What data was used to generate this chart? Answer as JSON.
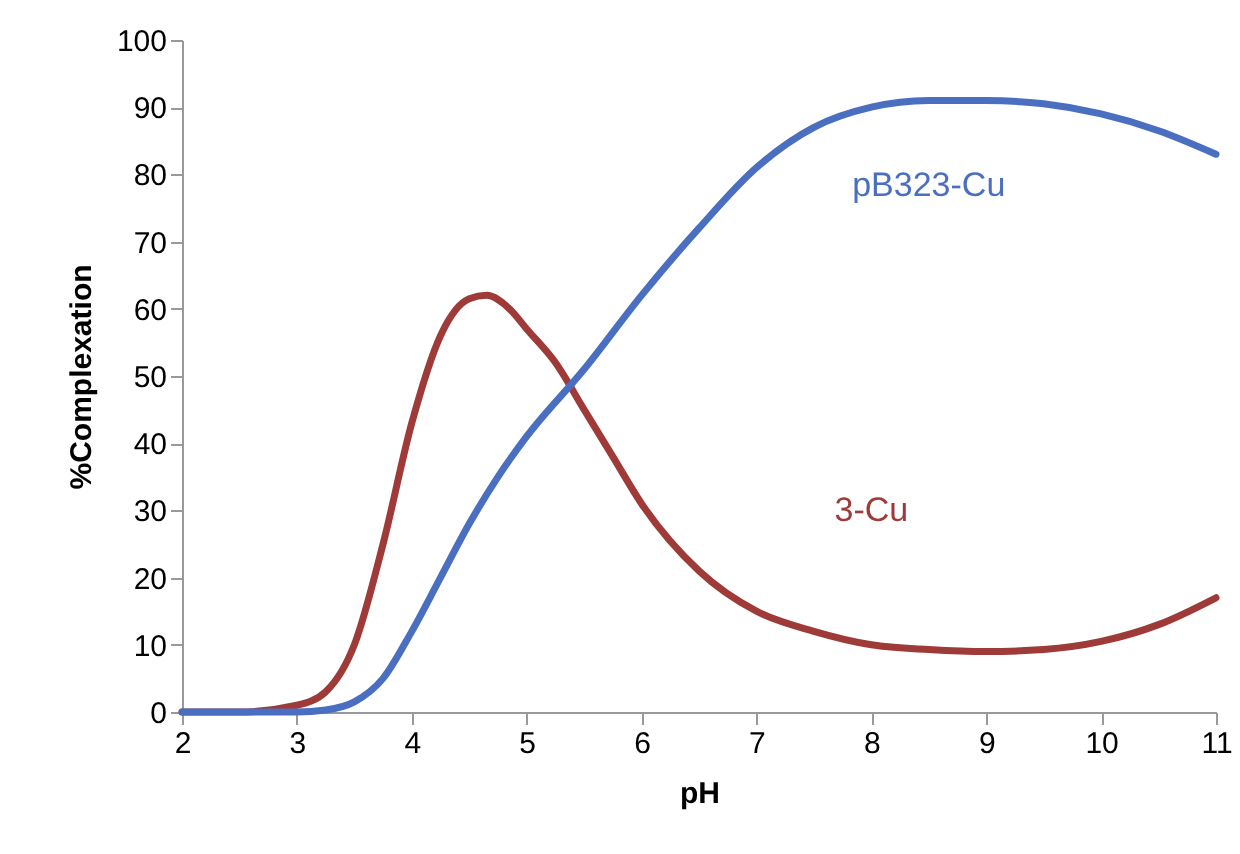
{
  "chart_data": {
    "type": "line",
    "xlabel": "pH",
    "ylabel": "%Complexation",
    "xlim": [
      2,
      11
    ],
    "ylim": [
      0,
      100
    ],
    "xticks": [
      2,
      3,
      4,
      5,
      6,
      7,
      8,
      9,
      10,
      11
    ],
    "yticks": [
      0,
      10,
      20,
      30,
      40,
      50,
      60,
      70,
      80,
      90,
      100
    ],
    "grid": false,
    "marker": "none",
    "line_style": "solid",
    "series": [
      {
        "name": "3-Cu",
        "color": "#9e3a38",
        "x": [
          2,
          2.5,
          3,
          3.25,
          3.5,
          3.75,
          4,
          4.25,
          4.5,
          4.65,
          4.85,
          5,
          5.25,
          5.5,
          5.75,
          6,
          6.5,
          7,
          7.5,
          8,
          8.5,
          9,
          9.5,
          10,
          10.5,
          11
        ],
        "values": [
          0,
          0,
          1,
          3,
          10,
          25,
          43,
          56,
          61.5,
          62,
          60,
          57,
          52,
          45,
          38,
          31,
          21,
          15,
          12,
          10,
          9.3,
          9,
          9.3,
          10.5,
          13,
          17
        ]
      },
      {
        "name": "pB323-Cu",
        "color": "#4a6fc1",
        "x": [
          2,
          3,
          3.25,
          3.5,
          3.75,
          4,
          4.25,
          4.5,
          4.75,
          5,
          5.5,
          6,
          6.5,
          7,
          7.5,
          8,
          8.5,
          9,
          9.5,
          10,
          10.5,
          11
        ],
        "values": [
          0,
          0,
          0.3,
          1.5,
          5,
          12,
          20,
          28,
          35,
          41,
          51,
          62,
          72,
          81,
          87,
          90,
          91,
          91,
          90.5,
          89,
          86.5,
          83
        ]
      }
    ]
  }
}
